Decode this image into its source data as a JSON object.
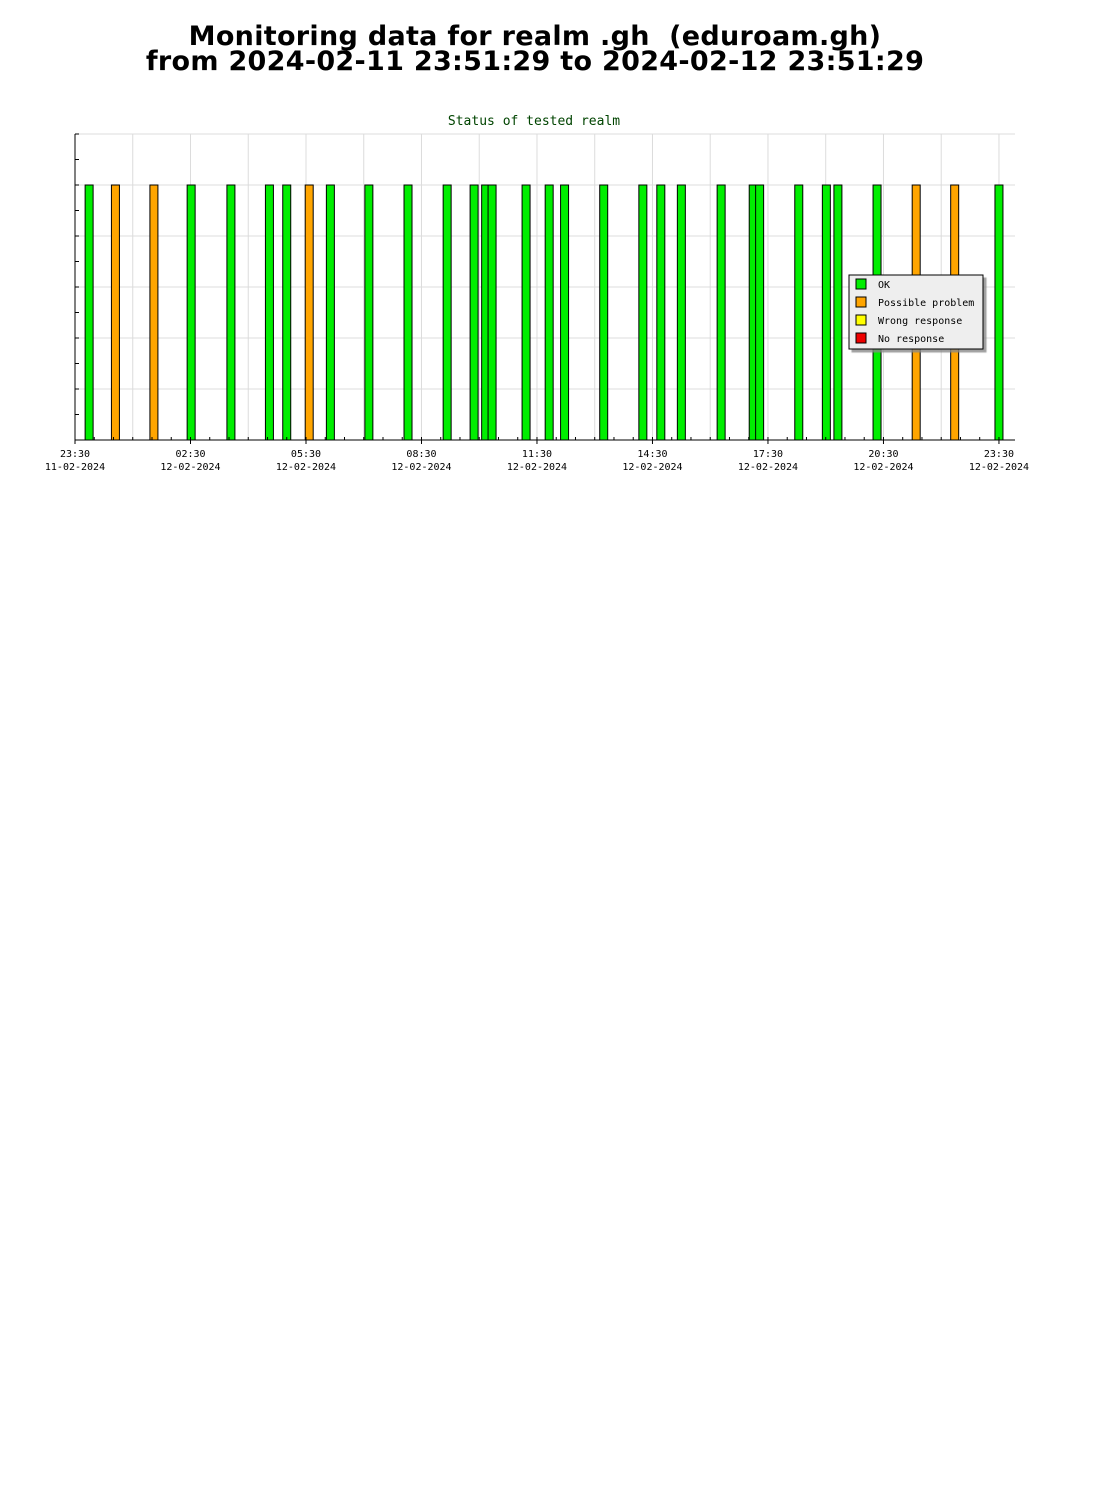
{
  "page": {
    "title_line1": "Monitoring data for realm .gh  (eduroam.gh)",
    "title_line2": "from 2024-02-11 23:51:29 to 2024-02-12 23:51:29"
  },
  "chart_data": {
    "type": "bar",
    "title": "Status of tested realm",
    "xlabel": "",
    "ylabel": "",
    "x_axis": "time",
    "x_range": [
      "2024-02-11 23:30",
      "2024-02-12 23:55"
    ],
    "ylim": [
      0,
      6
    ],
    "grid": true,
    "legend_position": "right",
    "x_ticks": [
      {
        "time": "2024-02-11 23:30",
        "line1": "23:30",
        "line2": "11-02-2024"
      },
      {
        "time": "2024-02-12 02:30",
        "line1": "02:30",
        "line2": "12-02-2024"
      },
      {
        "time": "2024-02-12 05:30",
        "line1": "05:30",
        "line2": "12-02-2024"
      },
      {
        "time": "2024-02-12 08:30",
        "line1": "08:30",
        "line2": "12-02-2024"
      },
      {
        "time": "2024-02-12 11:30",
        "line1": "11:30",
        "line2": "12-02-2024"
      },
      {
        "time": "2024-02-12 14:30",
        "line1": "14:30",
        "line2": "12-02-2024"
      },
      {
        "time": "2024-02-12 17:30",
        "line1": "17:30",
        "line2": "12-02-2024"
      },
      {
        "time": "2024-02-12 20:30",
        "line1": "20:30",
        "line2": "12-02-2024"
      },
      {
        "time": "2024-02-12 23:30",
        "line1": "23:30",
        "line2": "12-02-2024"
      }
    ],
    "legend": [
      {
        "name": "OK",
        "color": "#00ee00"
      },
      {
        "name": "Possible problem",
        "color": "#ffa500"
      },
      {
        "name": "Wrong response",
        "color": "#ffff00"
      },
      {
        "name": "No response",
        "color": "#ee0000"
      }
    ],
    "series": [
      {
        "name": "OK",
        "color": "#00ee00",
        "points": [
          {
            "time": "2024-02-11 23:52",
            "value": 5
          },
          {
            "time": "2024-02-12 02:31",
            "value": 5
          },
          {
            "time": "2024-02-12 03:33",
            "value": 5
          },
          {
            "time": "2024-02-12 04:33",
            "value": 5
          },
          {
            "time": "2024-02-12 05:00",
            "value": 5
          },
          {
            "time": "2024-02-12 06:08",
            "value": 5
          },
          {
            "time": "2024-02-12 07:08",
            "value": 5
          },
          {
            "time": "2024-02-12 08:09",
            "value": 5
          },
          {
            "time": "2024-02-12 09:10",
            "value": 5
          },
          {
            "time": "2024-02-12 09:52",
            "value": 5
          },
          {
            "time": "2024-02-12 10:10",
            "value": 5
          },
          {
            "time": "2024-02-12 10:20",
            "value": 5
          },
          {
            "time": "2024-02-12 11:13",
            "value": 5
          },
          {
            "time": "2024-02-12 11:49",
            "value": 5
          },
          {
            "time": "2024-02-12 12:13",
            "value": 5
          },
          {
            "time": "2024-02-12 13:14",
            "value": 5
          },
          {
            "time": "2024-02-12 14:15",
            "value": 5
          },
          {
            "time": "2024-02-12 14:43",
            "value": 5
          },
          {
            "time": "2024-02-12 15:15",
            "value": 5
          },
          {
            "time": "2024-02-12 16:17",
            "value": 5
          },
          {
            "time": "2024-02-12 17:07",
            "value": 5
          },
          {
            "time": "2024-02-12 17:17",
            "value": 5
          },
          {
            "time": "2024-02-12 18:18",
            "value": 5
          },
          {
            "time": "2024-02-12 19:01",
            "value": 5
          },
          {
            "time": "2024-02-12 19:19",
            "value": 5
          },
          {
            "time": "2024-02-12 20:20",
            "value": 5
          },
          {
            "time": "2024-02-12 23:30",
            "value": 5
          }
        ]
      },
      {
        "name": "Possible problem",
        "color": "#ffa500",
        "points": [
          {
            "time": "2024-02-12 00:33",
            "value": 5
          },
          {
            "time": "2024-02-12 01:33",
            "value": 5
          },
          {
            "time": "2024-02-12 05:35",
            "value": 5
          },
          {
            "time": "2024-02-12 21:21",
            "value": 5
          },
          {
            "time": "2024-02-12 22:21",
            "value": 5
          }
        ]
      },
      {
        "name": "Wrong response",
        "color": "#ffff00",
        "points": []
      },
      {
        "name": "No response",
        "color": "#ee0000",
        "points": []
      }
    ]
  }
}
